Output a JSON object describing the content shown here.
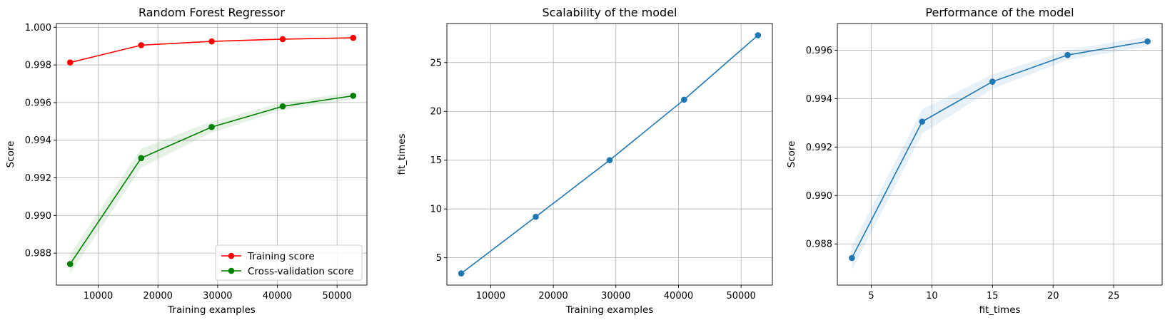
{
  "chart_data": [
    {
      "type": "line",
      "title": "Random Forest Regressor",
      "xlabel": "Training examples",
      "ylabel": "Score",
      "xlim": [
        3000,
        55000
      ],
      "ylim": [
        0.9863,
        1.0002
      ],
      "xticks": [
        10000,
        20000,
        30000,
        40000,
        50000
      ],
      "xtick_labels": [
        "10000",
        "20000",
        "30000",
        "40000",
        "50000"
      ],
      "yticks": [
        0.988,
        0.99,
        0.992,
        0.994,
        0.996,
        0.998,
        1.0
      ],
      "ytick_labels": [
        "0.988",
        "0.990",
        "0.992",
        "0.994",
        "0.996",
        "0.998",
        "1.000"
      ],
      "grid": true,
      "legend_position": "lower-right",
      "x": [
        5300,
        17200,
        29000,
        40900,
        52700
      ],
      "series": [
        {
          "name": "Training score",
          "color": "#ff0000",
          "values": [
            0.99813,
            0.99905,
            0.99925,
            0.99937,
            0.99944
          ],
          "band": [
            4e-05,
            3e-05,
            2e-05,
            2e-05,
            2e-05
          ]
        },
        {
          "name": "Cross-validation score",
          "color": "#008000",
          "values": [
            0.98742,
            0.99305,
            0.9947,
            0.9958,
            0.99636
          ],
          "band": [
            0.0005,
            0.0005,
            0.0003,
            0.0002,
            0.0002
          ]
        }
      ]
    },
    {
      "type": "line",
      "title": "Scalability of the model",
      "xlabel": "Training examples",
      "ylabel": "fit_times",
      "xlim": [
        3000,
        55000
      ],
      "ylim": [
        2.2,
        29.0
      ],
      "xticks": [
        10000,
        20000,
        30000,
        40000,
        50000
      ],
      "xtick_labels": [
        "10000",
        "20000",
        "30000",
        "40000",
        "50000"
      ],
      "yticks": [
        5,
        10,
        15,
        20,
        25
      ],
      "ytick_labels": [
        "5",
        "10",
        "15",
        "20",
        "25"
      ],
      "grid": true,
      "x": [
        5300,
        17200,
        29000,
        40900,
        52700
      ],
      "series": [
        {
          "color": "#1f77b4",
          "values": [
            3.4,
            9.2,
            15.0,
            21.2,
            27.8
          ],
          "band": [
            0.03,
            0.05,
            0.05,
            0.06,
            0.08
          ]
        }
      ]
    },
    {
      "type": "line",
      "title": "Performance of the model",
      "xlabel": "fit_times",
      "ylabel": "Score",
      "xlim": [
        2.2,
        29.0
      ],
      "ylim": [
        0.9863,
        0.9971
      ],
      "xticks": [
        5,
        10,
        15,
        20,
        25
      ],
      "xtick_labels": [
        "5",
        "10",
        "15",
        "20",
        "25"
      ],
      "yticks": [
        0.988,
        0.99,
        0.992,
        0.994,
        0.996
      ],
      "ytick_labels": [
        "0.988",
        "0.990",
        "0.992",
        "0.994",
        "0.996"
      ],
      "grid": true,
      "x": [
        3.4,
        9.2,
        15.0,
        21.2,
        27.8
      ],
      "series": [
        {
          "color": "#1f77b4",
          "values": [
            0.98742,
            0.99305,
            0.9947,
            0.9958,
            0.99636
          ],
          "band": [
            0.0005,
            0.0005,
            0.0003,
            0.0002,
            0.0002
          ]
        }
      ]
    }
  ]
}
